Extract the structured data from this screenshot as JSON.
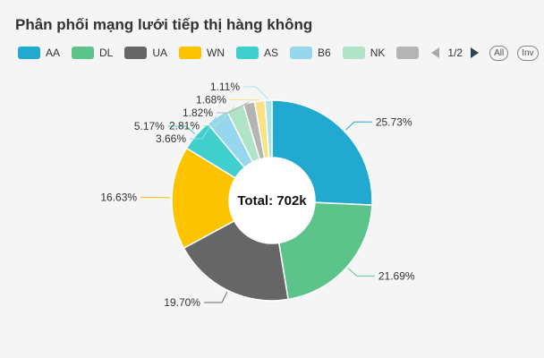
{
  "header": {
    "title": "Phân phối mạng lưới tiếp thị hàng không"
  },
  "legend": {
    "page_text": "1/2",
    "all_label": "All",
    "inv_label": "Inv"
  },
  "center_label": "Total: 702k",
  "chart_data": {
    "type": "pie",
    "title": "Phân phối mạng lưới tiếp thị hàng không",
    "total_label": "Total: 702k",
    "legend_position": "top-left",
    "slices": [
      {
        "name": "AA",
        "value": 25.73,
        "label": "25.73%",
        "color": "#21a9cf"
      },
      {
        "name": "DL",
        "value": 21.69,
        "label": "21.69%",
        "color": "#5cc48a"
      },
      {
        "name": "UA",
        "value": 19.7,
        "label": "19.70%",
        "color": "#666666"
      },
      {
        "name": "WN",
        "value": 16.63,
        "label": "16.63%",
        "color": "#fcc300"
      },
      {
        "name": "AS",
        "value": 5.17,
        "label": "5.17%",
        "color": "#40cfcc"
      },
      {
        "name": "B6",
        "value": 3.66,
        "label": "3.66%",
        "color": "#97d7ee"
      },
      {
        "name": "NK",
        "value": 2.81,
        "label": "2.81%",
        "color": "#b1e3c6"
      },
      {
        "name": "",
        "value": 1.82,
        "label": "1.82%",
        "color": "#b4b4b4"
      },
      {
        "name": "",
        "value": 1.68,
        "label": "1.68%",
        "color": "#fbe084"
      },
      {
        "name": "",
        "value": 1.11,
        "label": "1.11%",
        "color": "#a4e7e5"
      }
    ]
  }
}
